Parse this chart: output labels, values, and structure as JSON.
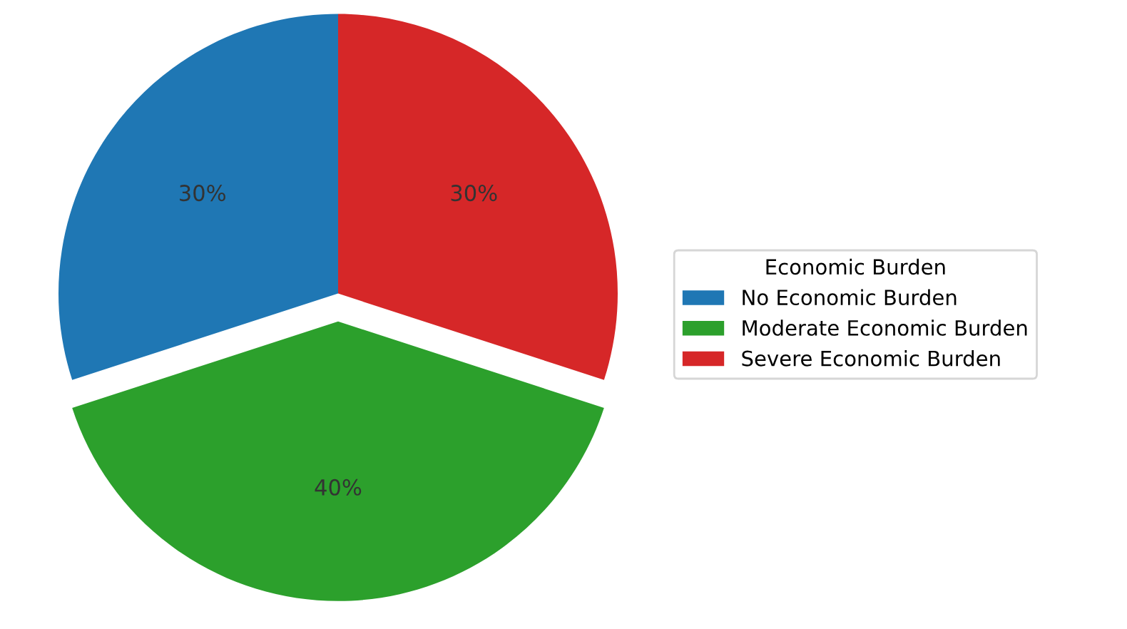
{
  "chart_data": {
    "type": "pie",
    "legend_title": "Economic Burden",
    "categories": [
      "No Economic Burden",
      "Moderate Economic Burden",
      "Severe Economic Burden"
    ],
    "values": [
      30,
      40,
      30
    ],
    "colors": [
      "#1f77b4",
      "#2ca02c",
      "#d62728"
    ],
    "value_labels": [
      "30%",
      "40%",
      "30%"
    ],
    "legend": "right"
  }
}
